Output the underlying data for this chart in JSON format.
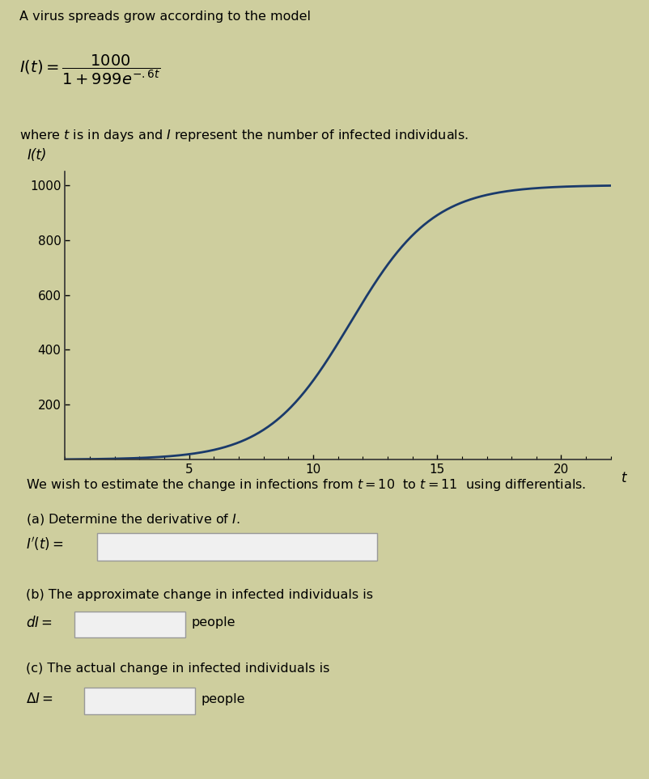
{
  "title_text": "A virus spreads grow according to the model",
  "where_text": "where $t$ is in days and $I$ represent the number of infected individuals.",
  "graph_ylabel": "I(t)",
  "graph_xlabel": "t",
  "yticks": [
    200,
    400,
    600,
    800,
    1000
  ],
  "xticks": [
    5,
    10,
    15,
    20
  ],
  "xlim": [
    0,
    22
  ],
  "ylim": [
    0,
    1050
  ],
  "curve_color": "#1a3a6b",
  "curve_linewidth": 2.0,
  "background_color": "#cece9e",
  "text_color": "#000000",
  "diff_text": "We wish to estimate the change in infections from $t = 10$  to $t = 11$  using differentials.",
  "part_a_label": "(a) Determine the derivative of $I$.",
  "part_b_label": "(b) The approximate change in infected individuals is",
  "part_b_unit": "people",
  "part_c_label": "(c) The actual change in infected individuals is",
  "part_c_unit": "people",
  "input_box_color": "#f0f0f0",
  "input_box_edge": "#999999"
}
